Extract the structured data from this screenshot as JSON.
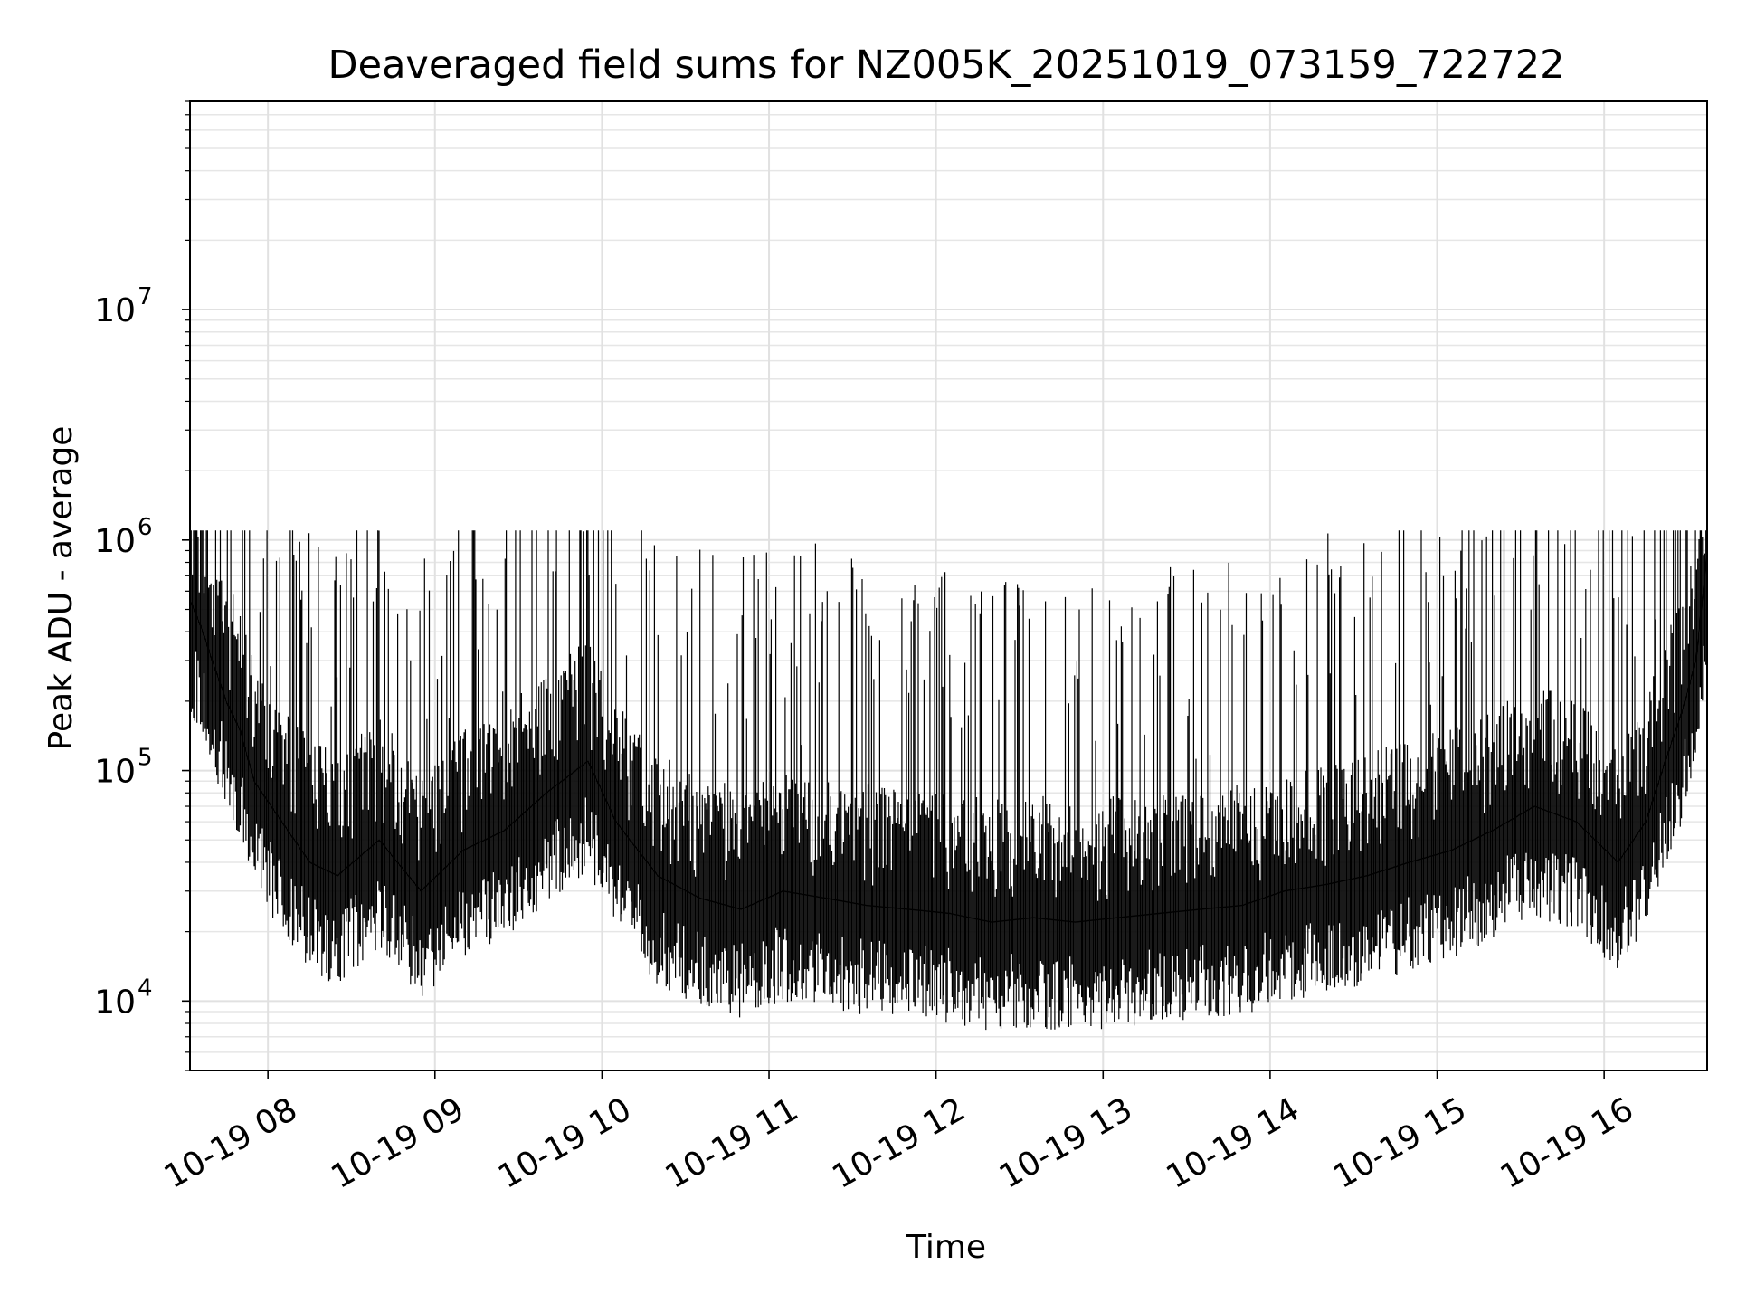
{
  "chart_data": {
    "type": "line",
    "title": "Deaveraged field sums for NZ005K_20251019_073159_722722",
    "xlabel": "Time",
    "ylabel": "Peak ADU - average",
    "y_scale": "log",
    "xlim": [
      "2025-10-19 07:32",
      "2025-10-19 16:37"
    ],
    "ylim": [
      5000,
      80000000
    ],
    "grid": true,
    "line_color": "#000000",
    "x_ticks": [
      {
        "value": "2025-10-19 08:00",
        "label": "10-19 08"
      },
      {
        "value": "2025-10-19 09:00",
        "label": "10-19 09"
      },
      {
        "value": "2025-10-19 10:00",
        "label": "10-19 10"
      },
      {
        "value": "2025-10-19 11:00",
        "label": "10-19 11"
      },
      {
        "value": "2025-10-19 12:00",
        "label": "10-19 12"
      },
      {
        "value": "2025-10-19 13:00",
        "label": "10-19 13"
      },
      {
        "value": "2025-10-19 14:00",
        "label": "10-19 14"
      },
      {
        "value": "2025-10-19 15:00",
        "label": "10-19 15"
      },
      {
        "value": "2025-10-19 16:00",
        "label": "10-19 16"
      }
    ],
    "y_ticks": [
      {
        "value": 10000,
        "base": "10",
        "exp": "4"
      },
      {
        "value": 100000,
        "base": "10",
        "exp": "5"
      },
      {
        "value": 1000000,
        "base": "10",
        "exp": "6"
      },
      {
        "value": 10000000,
        "base": "10",
        "exp": "7"
      }
    ],
    "series": [
      {
        "x": [
          "2025-10-19 07:32",
          "2025-10-19 07:36",
          "2025-10-19 07:40",
          "2025-10-19 07:45",
          "2025-10-19 07:50",
          "2025-10-19 07:55",
          "2025-10-19 08:05",
          "2025-10-19 08:15",
          "2025-10-19 08:25",
          "2025-10-19 08:40",
          "2025-10-19 08:55",
          "2025-10-19 09:10",
          "2025-10-19 09:25",
          "2025-10-19 09:40",
          "2025-10-19 09:55",
          "2025-10-19 10:05",
          "2025-10-19 10:20",
          "2025-10-19 10:35",
          "2025-10-19 10:50",
          "2025-10-19 11:05",
          "2025-10-19 11:20",
          "2025-10-19 11:35",
          "2025-10-19 11:50",
          "2025-10-19 12:05",
          "2025-10-19 12:20",
          "2025-10-19 12:35",
          "2025-10-19 12:50",
          "2025-10-19 13:05",
          "2025-10-19 13:20",
          "2025-10-19 13:35",
          "2025-10-19 13:50",
          "2025-10-19 14:05",
          "2025-10-19 14:20",
          "2025-10-19 14:35",
          "2025-10-19 14:50",
          "2025-10-19 15:05",
          "2025-10-19 15:20",
          "2025-10-19 15:35",
          "2025-10-19 15:50",
          "2025-10-19 16:05",
          "2025-10-19 16:15",
          "2025-10-19 16:22",
          "2025-10-19 16:28",
          "2025-10-19 16:33",
          "2025-10-19 16:37"
        ],
        "y": [
          550000,
          420000,
          300000,
          200000,
          150000,
          90000,
          60000,
          40000,
          35000,
          50000,
          30000,
          45000,
          55000,
          80000,
          110000,
          60000,
          35000,
          28000,
          25000,
          30000,
          28000,
          26000,
          25000,
          24000,
          22000,
          23000,
          22000,
          23000,
          24000,
          25000,
          26000,
          30000,
          32000,
          35000,
          40000,
          45000,
          55000,
          70000,
          60000,
          40000,
          60000,
          110000,
          180000,
          300000,
          900000
        ]
      }
    ]
  }
}
